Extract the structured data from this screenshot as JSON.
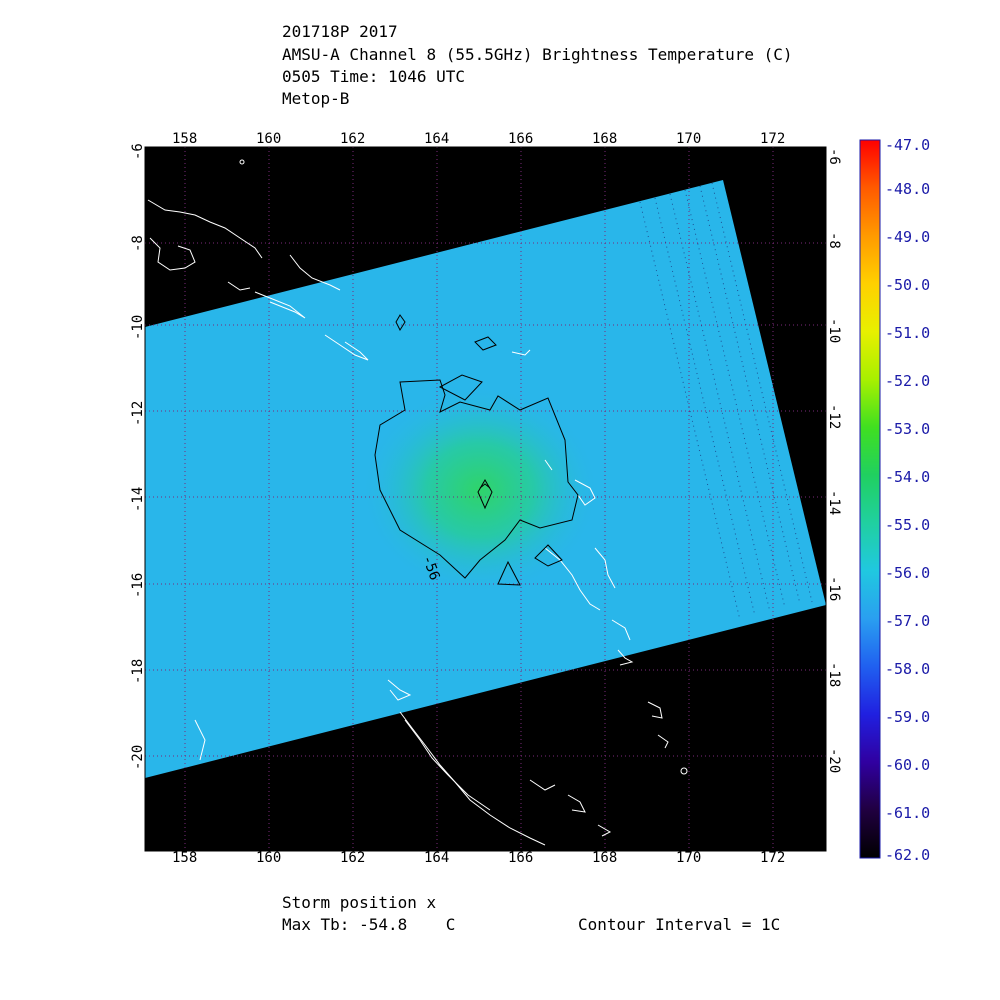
{
  "header": {
    "line1": "201718P 2017",
    "line2": "AMSU-A Channel 8 (55.5GHz) Brightness Temperature (C)",
    "line3": "0505 Time: 1046 UTC",
    "line4": "Metop-B"
  },
  "map": {
    "lon_ticks": [
      "158",
      "160",
      "162",
      "164",
      "166",
      "168",
      "170",
      "172"
    ],
    "lat_ticks": [
      "-6",
      "-8",
      "-10",
      "-12",
      "-14",
      "-16",
      "-18",
      "-20"
    ],
    "contour_label": "-56",
    "colors": {
      "background": "#000000",
      "swath_fill": "#29b6ea",
      "warm_core": "#28d07a",
      "coastline": "#ffffff",
      "grid": "#7a2a7a"
    }
  },
  "colorbar": {
    "labels": [
      "-47.0",
      "-48.0",
      "-49.0",
      "-50.0",
      "-51.0",
      "-52.0",
      "-53.0",
      "-54.0",
      "-55.0",
      "-56.0",
      "-57.0",
      "-58.0",
      "-59.0",
      "-60.0",
      "-61.0",
      "-62.0"
    ],
    "stops": [
      "#ff0000",
      "#ff5a00",
      "#ff9a00",
      "#ffd000",
      "#e8f000",
      "#a8f000",
      "#40e020",
      "#20d060",
      "#20d0a0",
      "#20c8e0",
      "#2a9ff0",
      "#2060f0",
      "#2020e0",
      "#3000a0",
      "#200040",
      "#000000"
    ]
  },
  "footer": {
    "storm_position": "Storm position x",
    "max_tb": "Max Tb: -54.8    C",
    "contour_interval": "Contour Interval = 1C"
  }
}
